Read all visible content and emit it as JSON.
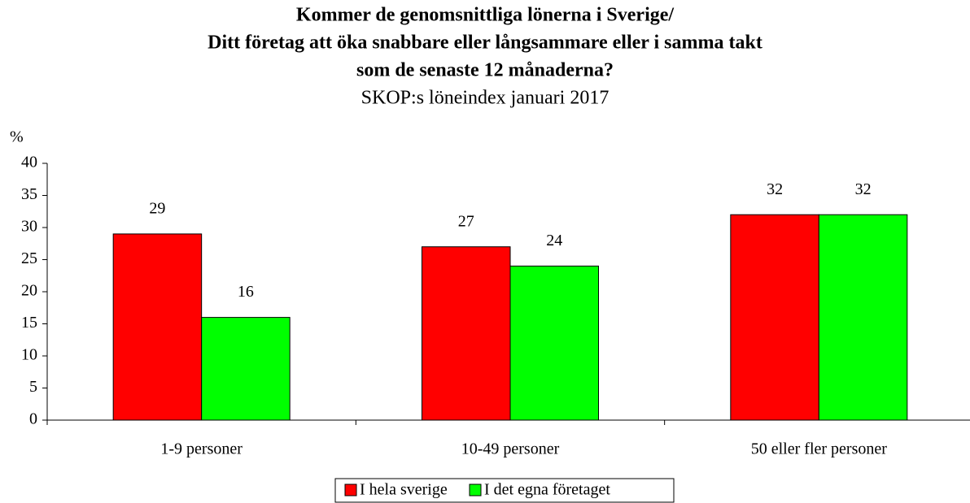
{
  "chart_data": {
    "type": "bar",
    "title": [
      "Kommer de genomsnittliga lönerna i Sverige/",
      "Ditt företag att öka snabbare eller långsammare eller i samma takt",
      "som de senaste 12 månaderna?"
    ],
    "subtitle": "SKOP:s löneindex januari 2017",
    "y_label": "%",
    "categories": [
      "1-9 personer",
      "10-49 personer",
      "50 eller fler personer"
    ],
    "series": [
      {
        "name": "I hela sverige",
        "color": "#ff0000",
        "values": [
          29,
          27,
          32
        ]
      },
      {
        "name": "I det egna företaget",
        "color": "#00ff00",
        "values": [
          16,
          24,
          32
        ]
      }
    ],
    "ylim": [
      0,
      40
    ],
    "yticks": [
      0,
      5,
      10,
      15,
      20,
      25,
      30,
      35,
      40
    ],
    "legend": "bottom"
  }
}
